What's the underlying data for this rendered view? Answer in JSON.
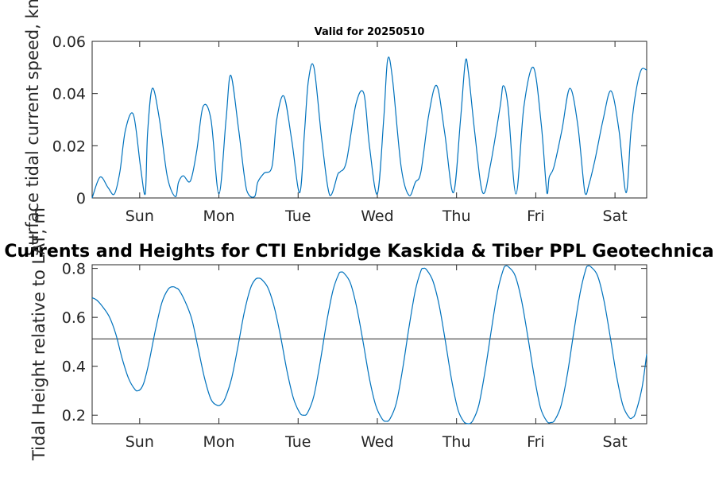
{
  "chart_data": [
    {
      "type": "line",
      "title": "Valid for 20250510",
      "ylabel": "Surface tidal current speed, kn",
      "ylim": [
        0,
        0.06
      ],
      "yticks": [
        0,
        0.02,
        0.04,
        0.06
      ],
      "ytick_labels": [
        "0",
        "0.02",
        "0.04",
        "0.06"
      ],
      "xlim": [
        0,
        7
      ],
      "xticks": [
        0.6,
        1.6,
        2.6,
        3.6,
        4.6,
        5.6,
        6.6
      ],
      "xtick_labels": [
        "Sun",
        "Mon",
        "Tue",
        "Wed",
        "Thu",
        "Fri",
        "Sat"
      ],
      "color": "#0072BD",
      "series": [
        {
          "x": [
            0,
            0.1,
            0.2,
            0.28,
            0.35,
            0.42,
            0.52,
            0.61,
            0.67,
            0.7,
            0.76,
            0.85,
            0.95,
            1.05,
            1.09,
            1.15,
            1.24,
            1.32,
            1.4,
            1.5,
            1.6,
            1.69,
            1.75,
            1.85,
            1.95,
            2.05,
            2.09,
            2.17,
            2.27,
            2.33,
            2.42,
            2.52,
            2.62,
            2.68,
            2.73,
            2.8,
            2.9,
            3.0,
            3.1,
            3.13,
            3.21,
            3.33,
            3.43,
            3.5,
            3.6,
            3.68,
            3.73,
            3.79,
            3.9,
            4.0,
            4.08,
            4.15,
            4.25,
            4.35,
            4.45,
            4.56,
            4.65,
            4.71,
            4.75,
            4.83,
            4.93,
            5.03,
            5.15,
            5.19,
            5.25,
            5.35,
            5.45,
            5.57,
            5.67,
            5.74,
            5.77,
            5.83,
            5.93,
            6.03,
            6.13,
            6.22,
            6.27,
            6.35,
            6.45,
            6.55,
            6.65,
            6.74,
            6.8,
            6.86,
            6.93,
            7.0
          ],
          "y": [
            0,
            0.008,
            0.004,
            0.0015,
            0.01,
            0.026,
            0.032,
            0.012,
            0.0015,
            0.025,
            0.042,
            0.03,
            0.008,
            0.0005,
            0.006,
            0.0085,
            0.0065,
            0.018,
            0.035,
            0.03,
            0.0015,
            0.03,
            0.047,
            0.026,
            0.003,
            0.0005,
            0.006,
            0.0095,
            0.012,
            0.03,
            0.039,
            0.022,
            0.002,
            0.025,
            0.045,
            0.05,
            0.022,
            0.001,
            0.009,
            0.01,
            0.014,
            0.036,
            0.04,
            0.02,
            0.0015,
            0.03,
            0.053,
            0.046,
            0.012,
            0.001,
            0.006,
            0.01,
            0.032,
            0.043,
            0.025,
            0.002,
            0.03,
            0.052,
            0.048,
            0.025,
            0.002,
            0.013,
            0.035,
            0.043,
            0.035,
            0.0015,
            0.035,
            0.05,
            0.028,
            0.002,
            0.008,
            0.012,
            0.026,
            0.042,
            0.028,
            0.002,
            0.005,
            0.015,
            0.03,
            0.041,
            0.026,
            0.002,
            0.025,
            0.04,
            0.049,
            0.049
          ]
        }
      ]
    },
    {
      "type": "line",
      "title": "Tidal Currents and Heights for CTI Enbridge  Kaskida & Tiber PPL Geotechnical &",
      "ylabel": "Tidal Height relative to LAT, m",
      "ylim": [
        0.165,
        0.815
      ],
      "yticks": [
        0.2,
        0.4,
        0.6,
        0.8
      ],
      "ytick_labels": [
        "0.2",
        "0.4",
        "0.6",
        "0.8"
      ],
      "xlim": [
        0,
        7
      ],
      "xticks": [
        0.6,
        1.6,
        2.6,
        3.6,
        4.6,
        5.6,
        6.6
      ],
      "xtick_labels": [
        "Sun",
        "Mon",
        "Tue",
        "Wed",
        "Thu",
        "Fri",
        "Sat"
      ],
      "color": "#0072BD",
      "reference_line": 0.512,
      "series": [
        {
          "x": [
            0,
            0.06,
            0.14,
            0.22,
            0.3,
            0.38,
            0.46,
            0.54,
            0.58,
            0.62,
            0.66,
            0.72,
            0.8,
            0.88,
            0.96,
            1.02,
            1.06,
            1.1,
            1.18,
            1.26,
            1.34,
            1.42,
            1.5,
            1.58,
            1.63,
            1.68,
            1.76,
            1.84,
            1.92,
            2.0,
            2.06,
            2.1,
            2.14,
            2.22,
            2.3,
            2.38,
            2.46,
            2.54,
            2.62,
            2.67,
            2.72,
            2.8,
            2.88,
            2.96,
            3.04,
            3.11,
            3.14,
            3.18,
            3.26,
            3.34,
            3.42,
            3.5,
            3.58,
            3.66,
            3.71,
            3.76,
            3.84,
            3.92,
            4.0,
            4.08,
            4.15,
            4.18,
            4.22,
            4.3,
            4.38,
            4.46,
            4.54,
            4.62,
            4.7,
            4.75,
            4.8,
            4.88,
            4.96,
            5.04,
            5.12,
            5.19,
            5.22,
            5.26,
            5.34,
            5.42,
            5.5,
            5.58,
            5.66,
            5.74,
            5.79,
            5.84,
            5.92,
            6.0,
            6.08,
            6.16,
            6.23,
            6.26,
            6.3,
            6.38,
            6.46,
            6.54,
            6.62,
            6.7,
            6.78,
            6.82,
            6.86,
            6.94,
            7.0
          ],
          "y": [
            0.68,
            0.67,
            0.64,
            0.6,
            0.53,
            0.43,
            0.35,
            0.305,
            0.3,
            0.31,
            0.34,
            0.42,
            0.55,
            0.66,
            0.715,
            0.725,
            0.72,
            0.71,
            0.66,
            0.59,
            0.47,
            0.35,
            0.265,
            0.24,
            0.245,
            0.27,
            0.35,
            0.48,
            0.62,
            0.72,
            0.755,
            0.76,
            0.755,
            0.72,
            0.64,
            0.52,
            0.38,
            0.27,
            0.21,
            0.2,
            0.21,
            0.28,
            0.42,
            0.58,
            0.71,
            0.775,
            0.785,
            0.78,
            0.74,
            0.64,
            0.5,
            0.35,
            0.24,
            0.185,
            0.175,
            0.185,
            0.25,
            0.39,
            0.56,
            0.71,
            0.79,
            0.8,
            0.795,
            0.75,
            0.65,
            0.5,
            0.34,
            0.22,
            0.17,
            0.165,
            0.175,
            0.24,
            0.38,
            0.55,
            0.71,
            0.795,
            0.81,
            0.805,
            0.77,
            0.67,
            0.52,
            0.36,
            0.23,
            0.175,
            0.17,
            0.18,
            0.24,
            0.37,
            0.54,
            0.7,
            0.795,
            0.81,
            0.805,
            0.77,
            0.67,
            0.52,
            0.36,
            0.24,
            0.19,
            0.19,
            0.21,
            0.31,
            0.45
          ]
        }
      ]
    }
  ]
}
